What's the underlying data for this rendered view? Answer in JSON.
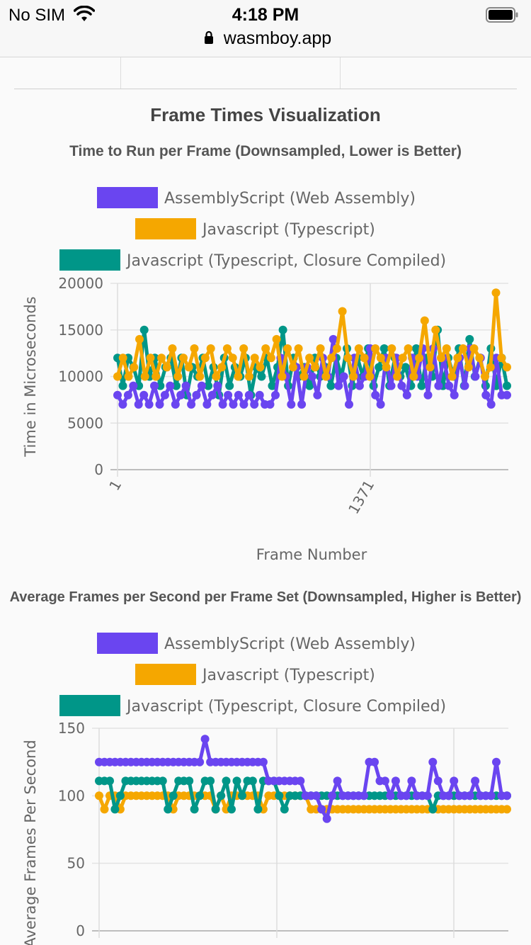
{
  "status_bar": {
    "carrier": "No SIM",
    "time": "4:18 PM",
    "url": "wasmboy.app"
  },
  "section": {
    "title": "Frame Times Visualization"
  },
  "colors": {
    "assemblyscript": "#6a45f0",
    "javascript": "#f5a700",
    "closure": "#009688"
  },
  "chart_data": [
    {
      "type": "line",
      "title": "Time to Run per Frame (Downsampled, Lower is Better)",
      "xlabel": "Frame Number",
      "ylabel": "Time in Microseconds",
      "ylim": [
        0,
        20000
      ],
      "yticks": [
        "20000",
        "15000",
        "10000",
        "5000",
        "0"
      ],
      "xticks": [
        "1",
        "1371"
      ],
      "legend": [
        "AssemblyScript (Web Assembly)",
        "Javascript (Typescript)",
        "Javascript (Typescript, Closure Compiled)"
      ],
      "legend_position": "top",
      "grid": true,
      "series": [
        {
          "name": "AssemblyScript (Web Assembly)",
          "color": "#6a45f0",
          "values": [
            8000,
            7000,
            8000,
            9000,
            7000,
            8000,
            7000,
            9000,
            7000,
            8000,
            9000,
            7000,
            8000,
            9000,
            7000,
            8000,
            9000,
            7000,
            8000,
            9000,
            7000,
            8000,
            7000,
            8000,
            7000,
            8000,
            7000,
            8000,
            7000,
            7000,
            8000,
            12000,
            10000,
            7000,
            11000,
            7000,
            11000,
            10000,
            8000,
            12000,
            10000,
            14000,
            9000,
            10000,
            7000,
            12000,
            9000,
            10000,
            13000,
            8000,
            7000,
            12000,
            9000,
            12000,
            9000,
            8000,
            12000,
            10000,
            13000,
            8000,
            13000,
            9000,
            12000,
            9000,
            8000,
            12000,
            9000,
            13000,
            10000,
            12000,
            8000,
            7000,
            12000,
            8000,
            8000
          ]
        },
        {
          "name": "Javascript (Typescript)",
          "color": "#f5a700",
          "values": [
            10000,
            12000,
            10000,
            11000,
            14000,
            10000,
            12000,
            10000,
            12000,
            11000,
            13000,
            10000,
            12000,
            11000,
            13000,
            10000,
            12000,
            13000,
            10000,
            11000,
            13000,
            12000,
            10000,
            13000,
            10000,
            12000,
            11000,
            13000,
            12000,
            14000,
            10000,
            13000,
            11000,
            13000,
            10000,
            12000,
            11000,
            13000,
            10000,
            12000,
            13000,
            17000,
            12000,
            10000,
            13000,
            12000,
            10000,
            13000,
            12000,
            11000,
            13000,
            10000,
            12000,
            13000,
            10000,
            12000,
            16000,
            11000,
            15000,
            12000,
            13000,
            10000,
            12000,
            13000,
            11000,
            13000,
            12000,
            10000,
            11000,
            19000,
            12000,
            11000
          ]
        },
        {
          "name": "Javascript (Typescript, Closure Compiled)",
          "color": "#009688",
          "values": [
            12000,
            9000,
            12000,
            11000,
            9000,
            15000,
            10000,
            12000,
            9000,
            11000,
            12000,
            9000,
            12000,
            8000,
            11000,
            10000,
            12000,
            9000,
            11000,
            8000,
            12000,
            9000,
            11000,
            10000,
            12000,
            8000,
            11000,
            10000,
            12000,
            9000,
            11000,
            15000,
            9000,
            12000,
            10000,
            11000,
            9000,
            12000,
            10000,
            11000,
            9000,
            12000,
            10000,
            13000,
            9000,
            12000,
            10000,
            13000,
            9000,
            11000,
            13000,
            9000,
            12000,
            10000,
            11000,
            9000,
            13000,
            9000,
            12000,
            10000,
            15000,
            9000,
            12000,
            10000,
            13000,
            9000,
            14000,
            10000,
            12000,
            9000,
            13000,
            9000,
            12000,
            9000
          ]
        }
      ]
    },
    {
      "type": "line",
      "title": "Average Frames per Second per Frame Set (Downsampled, Higher is Better)",
      "xlabel": "",
      "ylabel": "Average Frames Per Second",
      "ylim": [
        0,
        150
      ],
      "yticks": [
        "150",
        "100",
        "50",
        "0"
      ],
      "legend": [
        "AssemblyScript (Web Assembly)",
        "Javascript (Typescript)",
        "Javascript (Typescript, Closure Compiled)"
      ],
      "legend_position": "top",
      "grid": true,
      "series": [
        {
          "name": "AssemblyScript (Web Assembly)",
          "color": "#6a45f0",
          "values": [
            125,
            125,
            125,
            125,
            125,
            125,
            125,
            125,
            125,
            125,
            125,
            125,
            125,
            125,
            125,
            125,
            125,
            125,
            125,
            125,
            142,
            125,
            125,
            125,
            125,
            125,
            125,
            125,
            125,
            125,
            125,
            125,
            111,
            111,
            111,
            111,
            111,
            111,
            111,
            100,
            100,
            100,
            90,
            83,
            100,
            111,
            100,
            100,
            100,
            100,
            100,
            125,
            125,
            111,
            111,
            100,
            111,
            100,
            100,
            111,
            100,
            100,
            100,
            125,
            111,
            100,
            100,
            111,
            100,
            100,
            100,
            111,
            100,
            100,
            100,
            125,
            100,
            100
          ]
        },
        {
          "name": "Javascript (Typescript)",
          "color": "#f5a700",
          "values": [
            100,
            90,
            100,
            100,
            90,
            100,
            100,
            100,
            100,
            100,
            100,
            100,
            100,
            100,
            90,
            100,
            100,
            100,
            100,
            100,
            100,
            100,
            90,
            100,
            90,
            100,
            100,
            100,
            100,
            100,
            100,
            90,
            100,
            100,
            100,
            100,
            100,
            100,
            100,
            100,
            90,
            90,
            90,
            90,
            90,
            90,
            90,
            90,
            90,
            90,
            90,
            90,
            90,
            90,
            90,
            90,
            90,
            90,
            90,
            90,
            90,
            90,
            90,
            90,
            90,
            90,
            90,
            90,
            90,
            90,
            90,
            90,
            90,
            90,
            90,
            90,
            90,
            90
          ]
        },
        {
          "name": "Javascript (Typescript, Closure Compiled)",
          "color": "#009688",
          "values": [
            111,
            111,
            111,
            90,
            100,
            111,
            111,
            111,
            111,
            111,
            111,
            111,
            111,
            90,
            100,
            111,
            111,
            111,
            90,
            100,
            111,
            111,
            90,
            100,
            111,
            90,
            111,
            100,
            111,
            111,
            90,
            111,
            111,
            111,
            100,
            90,
            100,
            100,
            100,
            100,
            100,
            100,
            100,
            100,
            100,
            100,
            100,
            100,
            100,
            100,
            100,
            100,
            100,
            100,
            100,
            100,
            100,
            100,
            100,
            100,
            100,
            100,
            100,
            90,
            100,
            100,
            100,
            100,
            100,
            100,
            100,
            100,
            100,
            100,
            100,
            100,
            100,
            100
          ]
        }
      ]
    }
  ]
}
